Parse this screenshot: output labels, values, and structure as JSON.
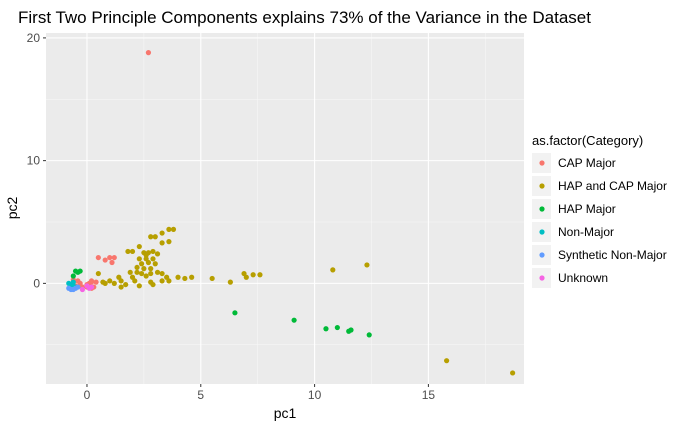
{
  "chart_data": {
    "type": "scatter",
    "title": "First Two Principle Components explains 73% of the Variance in the Dataset",
    "xlabel": "pc1",
    "ylabel": "pc2",
    "xlim": [
      -1.8,
      19.2
    ],
    "ylim": [
      -8.2,
      20.4
    ],
    "x_ticks": [
      0,
      5,
      10,
      15
    ],
    "y_ticks": [
      0,
      10,
      20
    ],
    "x_tick_labels": [
      "0",
      "5",
      "10",
      "15"
    ],
    "y_tick_labels": [
      "0",
      "10",
      "20"
    ],
    "grid": true,
    "background": "#ebebeb",
    "legend_position": "right",
    "legend_title": "as.factor(Category)",
    "series": [
      {
        "name": "CAP Major",
        "color": "#F8766D",
        "points": [
          [
            2.7,
            18.8
          ],
          [
            0.5,
            2.1
          ],
          [
            0.8,
            1.9
          ],
          [
            1.0,
            2.1
          ],
          [
            1.2,
            2.1
          ],
          [
            1.1,
            1.7
          ],
          [
            0.2,
            0.2
          ],
          [
            0.0,
            -0.1
          ],
          [
            -0.3,
            0.0
          ],
          [
            -0.5,
            -0.2
          ],
          [
            0.3,
            -0.3
          ],
          [
            0.1,
            0.0
          ],
          [
            -0.2,
            -0.3
          ],
          [
            0.2,
            0.1
          ],
          [
            0.2,
            -0.4
          ],
          [
            -0.6,
            0.3
          ],
          [
            0.4,
            0.1
          ],
          [
            -0.4,
            0.2
          ],
          [
            0.0,
            -0.3
          ]
        ]
      },
      {
        "name": "HAP and CAP Major",
        "color": "#B79F00",
        "points": [
          [
            3.6,
            4.4
          ],
          [
            3.8,
            4.4
          ],
          [
            3.3,
            4.1
          ],
          [
            2.8,
            3.8
          ],
          [
            3.0,
            3.8
          ],
          [
            3.3,
            3.3
          ],
          [
            3.6,
            3.4
          ],
          [
            2.3,
            3.0
          ],
          [
            2.0,
            2.6
          ],
          [
            1.8,
            2.6
          ],
          [
            2.5,
            2.5
          ],
          [
            2.7,
            2.5
          ],
          [
            2.9,
            2.6
          ],
          [
            3.1,
            2.4
          ],
          [
            2.6,
            2.3
          ],
          [
            2.3,
            2.0
          ],
          [
            2.6,
            2.0
          ],
          [
            2.9,
            2.0
          ],
          [
            2.4,
            1.6
          ],
          [
            2.7,
            1.7
          ],
          [
            3.0,
            1.6
          ],
          [
            2.2,
            1.3
          ],
          [
            2.5,
            1.2
          ],
          [
            2.8,
            1.2
          ],
          [
            1.9,
            0.9
          ],
          [
            2.2,
            0.9
          ],
          [
            2.4,
            0.8
          ],
          [
            2.8,
            0.8
          ],
          [
            3.1,
            0.9
          ],
          [
            3.3,
            0.8
          ],
          [
            1.4,
            0.5
          ],
          [
            2.0,
            0.5
          ],
          [
            2.6,
            0.6
          ],
          [
            3.5,
            0.5
          ],
          [
            4.0,
            0.5
          ],
          [
            1.0,
            0.2
          ],
          [
            1.5,
            0.2
          ],
          [
            2.1,
            0.2
          ],
          [
            2.8,
            0.1
          ],
          [
            3.3,
            0.2
          ],
          [
            3.6,
            0.2
          ],
          [
            4.3,
            0.4
          ],
          [
            4.6,
            0.5
          ],
          [
            5.5,
            0.4
          ],
          [
            6.3,
            0.1
          ],
          [
            6.9,
            0.8
          ],
          [
            7.0,
            0.5
          ],
          [
            7.3,
            0.7
          ],
          [
            7.6,
            0.7
          ],
          [
            1.2,
            0.0
          ],
          [
            1.7,
            -0.1
          ],
          [
            2.3,
            -0.2
          ],
          [
            2.9,
            -0.1
          ],
          [
            1.5,
            -0.3
          ],
          [
            0.8,
            0.0
          ],
          [
            0.5,
            0.8
          ],
          [
            0.7,
            0.1
          ],
          [
            10.8,
            1.1
          ],
          [
            12.3,
            1.5
          ],
          [
            15.8,
            -6.3
          ],
          [
            18.7,
            -7.3
          ]
        ]
      },
      {
        "name": "HAP Major",
        "color": "#00BA38",
        "points": [
          [
            -0.5,
            1.0
          ],
          [
            -0.4,
            0.9
          ],
          [
            -0.3,
            1.0
          ],
          [
            -0.6,
            0.6
          ],
          [
            6.5,
            -2.4
          ],
          [
            9.1,
            -3.0
          ],
          [
            10.5,
            -3.7
          ],
          [
            11.0,
            -3.6
          ],
          [
            11.5,
            -3.9
          ],
          [
            11.6,
            -3.8
          ],
          [
            12.4,
            -4.2
          ]
        ]
      },
      {
        "name": "Non-Major",
        "color": "#00BFC4",
        "points": [
          [
            -0.7,
            -0.1
          ],
          [
            -0.6,
            0.1
          ],
          [
            -0.5,
            -0.3
          ],
          [
            -0.8,
            0.0
          ],
          [
            -0.6,
            -0.2
          ]
        ]
      },
      {
        "name": "Synthetic Non-Major",
        "color": "#619CFF",
        "points": [
          [
            -0.8,
            -0.4
          ],
          [
            -0.7,
            -0.5
          ],
          [
            -0.5,
            -0.4
          ],
          [
            -0.4,
            -0.3
          ],
          [
            -0.6,
            -0.5
          ]
        ]
      },
      {
        "name": "Unknown",
        "color": "#F564E3",
        "points": [
          [
            0.0,
            -0.2
          ],
          [
            0.1,
            -0.4
          ],
          [
            -0.2,
            -0.5
          ],
          [
            0.2,
            -0.3
          ]
        ]
      }
    ]
  }
}
